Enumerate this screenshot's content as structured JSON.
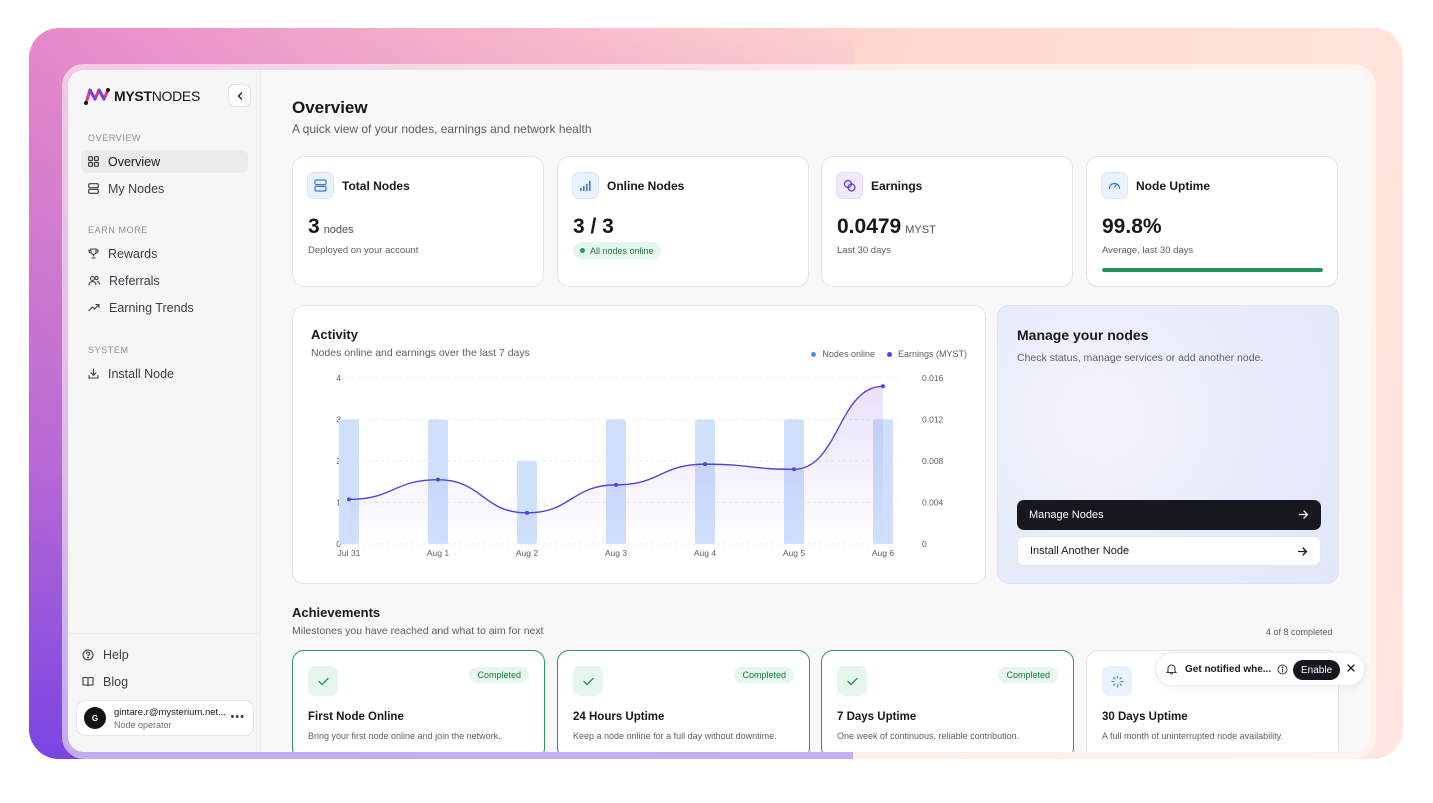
{
  "brand": {
    "name_bold": "MYST",
    "name_light": "NODES"
  },
  "sidebar": {
    "sections": [
      {
        "label": "OVERVIEW",
        "items": [
          {
            "label": "Overview",
            "icon": "grid-icon",
            "active": true
          },
          {
            "label": "My Nodes",
            "icon": "server-icon"
          }
        ]
      },
      {
        "label": "EARN MORE",
        "items": [
          {
            "label": "Rewards",
            "icon": "trophy-icon"
          },
          {
            "label": "Referrals",
            "icon": "users-icon"
          },
          {
            "label": "Earning Trends",
            "icon": "trend-icon"
          }
        ]
      },
      {
        "label": "SYSTEM",
        "items": [
          {
            "label": "Install Node",
            "icon": "download-icon"
          }
        ]
      }
    ],
    "bottom": [
      {
        "label": "Help",
        "icon": "help-icon"
      },
      {
        "label": "Blog",
        "icon": "book-icon"
      }
    ],
    "user": {
      "initial": "G",
      "email": "gintare.r@mysterium.net...",
      "role": "Node operator"
    }
  },
  "page": {
    "title": "Overview",
    "subtitle": "A quick view of your nodes, earnings and network health"
  },
  "stats": [
    {
      "title": "Total Nodes",
      "icon": "server-icon",
      "value": "3",
      "unit": "nodes",
      "note": "Deployed on your account"
    },
    {
      "title": "Online Nodes",
      "icon": "signal-icon",
      "value": "3 / 3",
      "pill": "All nodes online"
    },
    {
      "title": "Earnings",
      "icon": "coins-icon",
      "value": "0.0479",
      "unit": "MYST",
      "note": "Last 30 days"
    },
    {
      "title": "Node Uptime",
      "icon": "gauge-icon",
      "value": "99.8%",
      "note": "Average, last 30 days",
      "progress": 0.998
    }
  ],
  "activity": {
    "title": "Activity",
    "subtitle": "Nodes online and earnings over the last 7 days",
    "legend": [
      {
        "label": "Nodes online",
        "color": "#4a90e2"
      },
      {
        "label": "Earnings (MYST)",
        "color": "#5b3fd6"
      }
    ]
  },
  "chart_data": {
    "type": "bar",
    "categories": [
      "Jul 31",
      "Aug 1",
      "Aug 2",
      "Aug 3",
      "Aug 4",
      "Aug 5",
      "Aug 6"
    ],
    "series": [
      {
        "name": "Nodes online",
        "type": "bar",
        "axis": "left",
        "values": [
          3,
          3,
          2,
          3,
          3,
          3,
          3
        ],
        "color": "#cfe0fb"
      },
      {
        "name": "Earnings (MYST)",
        "type": "line",
        "axis": "right",
        "values": [
          0.0043,
          0.0062,
          0.003,
          0.0057,
          0.0077,
          0.0072,
          0.0152
        ],
        "color": "#5b3fd6"
      }
    ],
    "ylim_left": [
      0,
      4
    ],
    "yticks_left": [
      "0",
      "1",
      "2",
      "3",
      "4"
    ],
    "ylim_right": [
      0,
      0.016
    ],
    "yticks_right": [
      "0",
      "0.004",
      "0.008",
      "0.012",
      "0.016"
    ],
    "grid": true,
    "legend_position": "top-right"
  },
  "manage": {
    "title": "Manage your nodes",
    "subtitle": "Check status, manage services or add another node.",
    "primary": "Manage Nodes",
    "secondary": "Install Another Node"
  },
  "achievements": {
    "title": "Achievements",
    "subtitle": "Milestones you have reached and what to aim for next",
    "count": "4 of 8 completed",
    "items": [
      {
        "name": "First Node Online",
        "desc": "Bring your first node online and join the network.",
        "badge": "Completed",
        "completed": true
      },
      {
        "name": "24 Hours Uptime",
        "desc": "Keep a node online for a full day without downtime.",
        "badge": "Completed",
        "completed": true
      },
      {
        "name": "7 Days Uptime",
        "desc": "One week of continuous, reliable contribution.",
        "badge": "Completed",
        "completed": true
      },
      {
        "name": "30 Days Uptime",
        "desc": "A full month of uninterrupted node availability.",
        "completed": false
      }
    ]
  },
  "toast": {
    "text": "Get notified whe...",
    "button": "Enable"
  }
}
